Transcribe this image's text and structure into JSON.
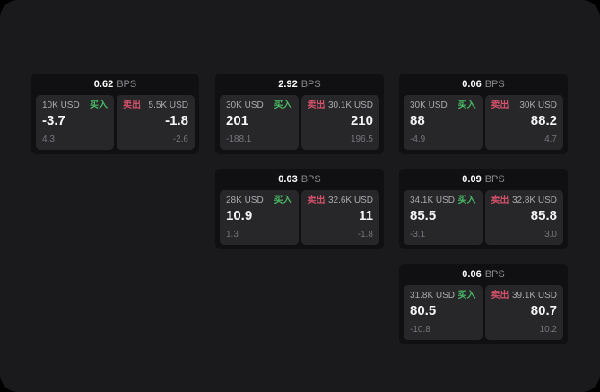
{
  "window": {
    "background": "#000000",
    "panel_background": "#1a1a1c"
  },
  "labels": {
    "buy": "买入",
    "sell": "卖出",
    "bps_unit": "BPS"
  },
  "colors": {
    "buy_green": "#4ab964",
    "sell_red": "#d25069",
    "card_background": "#101012",
    "tile_background": "#27272a"
  },
  "cards": [
    {
      "bps": "0.62",
      "buy": {
        "amount": "10K USD",
        "value": "-3.7",
        "sub": "4.3"
      },
      "sell": {
        "amount": "5.5K USD",
        "value": "-1.8",
        "sub": "-2.6"
      }
    },
    {
      "bps": "2.92",
      "buy": {
        "amount": "30K USD",
        "value": "201",
        "sub": "-188.1"
      },
      "sell": {
        "amount": "30.1K USD",
        "value": "210",
        "sub": "196.5"
      }
    },
    {
      "bps": "0.06",
      "buy": {
        "amount": "30K USD",
        "value": "88",
        "sub": "-4.9"
      },
      "sell": {
        "amount": "30K USD",
        "value": "88.2",
        "sub": "4.7"
      }
    },
    {
      "bps": "0.03",
      "buy": {
        "amount": "28K USD",
        "value": "10.9",
        "sub": "1.3"
      },
      "sell": {
        "amount": "32.6K USD",
        "value": "11",
        "sub": "-1.8"
      }
    },
    {
      "bps": "0.09",
      "buy": {
        "amount": "34.1K USD",
        "value": "85.5",
        "sub": "-3.1"
      },
      "sell": {
        "amount": "32.8K USD",
        "value": "85.8",
        "sub": "3.0"
      }
    },
    {
      "bps": "0.06",
      "buy": {
        "amount": "31.8K USD",
        "value": "80.5",
        "sub": "-10.8"
      },
      "sell": {
        "amount": "39.1K USD",
        "value": "80.7",
        "sub": "10.2"
      }
    }
  ]
}
